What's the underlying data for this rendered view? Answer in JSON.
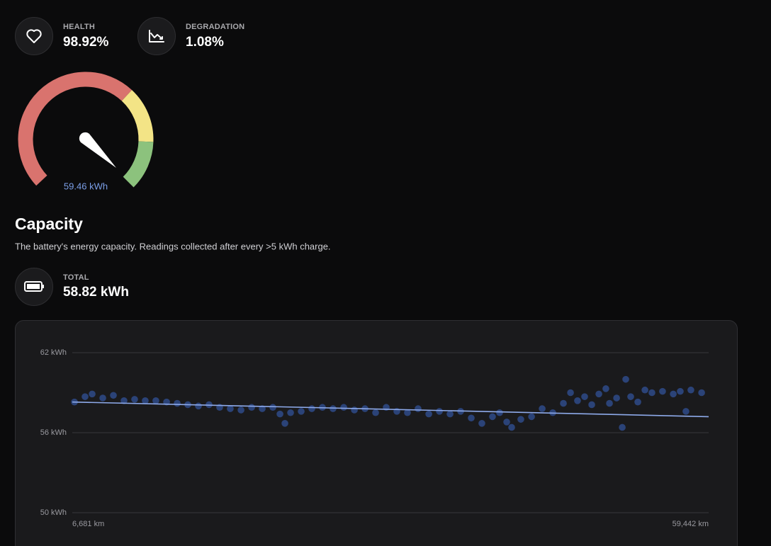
{
  "stats": [
    {
      "label": "HEALTH",
      "value": "98.92%"
    },
    {
      "label": "DEGRADATION",
      "value": "1.08%"
    }
  ],
  "gauge": {
    "label": "59.46 kWh"
  },
  "capacity": {
    "title": "Capacity",
    "description": "The battery's energy capacity. Readings collected after every >5 kWh charge.",
    "total_label": "TOTAL",
    "total_value": "58.82 kWh"
  },
  "chart_data": {
    "type": "scatter",
    "color": "#3a66c4",
    "grid": true,
    "x": [
      6860,
      7740,
      8330,
      9210,
      10090,
      10970,
      11850,
      12730,
      13610,
      14500,
      15380,
      16260,
      17140,
      18020,
      18900,
      19780,
      20670,
      21550,
      22430,
      23310,
      23900,
      24310,
      24780,
      25660,
      26540,
      27420,
      28300,
      29190,
      30070,
      30950,
      31830,
      32710,
      33590,
      34470,
      35350,
      36240,
      37120,
      38000,
      38880,
      39760,
      40640,
      41520,
      42110,
      42700,
      43110,
      43870,
      44760,
      45640,
      46520,
      47400,
      47990,
      48570,
      49160,
      49750,
      50340,
      50920,
      51220,
      51810,
      52280,
      52570,
      52980,
      53570,
      54160,
      54740,
      55620,
      56510,
      57090,
      57560,
      57970,
      58860
    ],
    "values": [
      58.3,
      58.7,
      58.9,
      58.6,
      58.8,
      58.4,
      58.5,
      58.4,
      58.4,
      58.3,
      58.2,
      58.1,
      58.0,
      58.1,
      57.9,
      57.8,
      57.7,
      57.9,
      57.8,
      57.9,
      57.4,
      56.7,
      57.5,
      57.6,
      57.8,
      57.9,
      57.8,
      57.9,
      57.7,
      57.8,
      57.5,
      57.9,
      57.6,
      57.5,
      57.8,
      57.4,
      57.6,
      57.4,
      57.6,
      57.1,
      56.7,
      57.2,
      57.5,
      56.8,
      56.4,
      57.0,
      57.2,
      57.8,
      57.5,
      58.2,
      59.0,
      58.4,
      58.7,
      58.1,
      58.9,
      59.3,
      58.2,
      58.6,
      56.4,
      60.0,
      58.7,
      58.3,
      59.2,
      59.0,
      59.1,
      58.9,
      59.1,
      57.6,
      59.2,
      59.0
    ],
    "trend": {
      "x": [
        6681,
        59442
      ],
      "values": [
        58.3,
        57.2
      ]
    },
    "xlim": [
      6681,
      59442
    ],
    "xticks": [
      {
        "value": 6681,
        "label": "6,681 km"
      },
      {
        "value": 59442,
        "label": "59,442 km"
      }
    ],
    "ylim": [
      50,
      62
    ],
    "yticks": [
      {
        "value": 62,
        "label": "62 kWh"
      },
      {
        "value": 56,
        "label": "56 kWh"
      },
      {
        "value": 50,
        "label": "50 kWh"
      }
    ]
  }
}
